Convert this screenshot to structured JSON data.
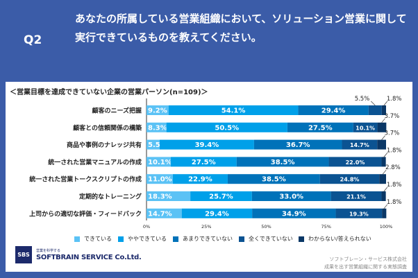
{
  "header": {
    "q": "Q2",
    "question": "あなたの所属している営業組織において、ソリューション営業に関して実行できているものを教えてください。"
  },
  "chart_data": {
    "type": "bar",
    "stacked": true,
    "orientation": "horizontal",
    "title": "＜営業目標を達成できていない企業の営業パーソン(n=109)＞",
    "categories": [
      "顧客のニーズ把握",
      "顧客との信頼関係の構築",
      "商品や事例のナレッジ共有",
      "統一された営業マニュアルの作成",
      "統一された営業トークスクリプトの作成",
      "定期的なトレーニング",
      "上司からの適切な評価・フィードバック"
    ],
    "series": [
      {
        "name": "できている",
        "color": "#5bc2f5",
        "values": [
          9.2,
          8.3,
          5.5,
          10.1,
          11.0,
          18.3,
          14.7
        ]
      },
      {
        "name": "ややできている",
        "color": "#00a0e9",
        "values": [
          54.1,
          50.5,
          39.4,
          27.5,
          22.9,
          25.7,
          29.4
        ]
      },
      {
        "name": "あまりできていない",
        "color": "#0072b9",
        "values": [
          29.4,
          27.5,
          36.7,
          38.5,
          38.5,
          33.0,
          34.9
        ]
      },
      {
        "name": "全くできていない",
        "color": "#0b5392",
        "values": [
          5.5,
          10.1,
          14.7,
          22.0,
          24.8,
          21.1,
          19.3
        ]
      },
      {
        "name": "わからない/答えられない",
        "color": "#0a3766",
        "values": [
          1.8,
          3.7,
          3.7,
          1.8,
          2.8,
          1.8,
          1.8
        ]
      }
    ],
    "xticks": [
      "0%",
      "25%",
      "50%",
      "75%",
      "100%"
    ],
    "xlim": [
      0,
      100
    ],
    "legend": "bottom"
  },
  "footer": {
    "logo": "SBS",
    "tagline": "営業を科学する",
    "brand": "SOFTBRAIN SERVICE Co.Ltd.",
    "company": "ソフトブレーン・サービス株式会社",
    "survey": "成果を出す営業組織に関する実態調査"
  }
}
